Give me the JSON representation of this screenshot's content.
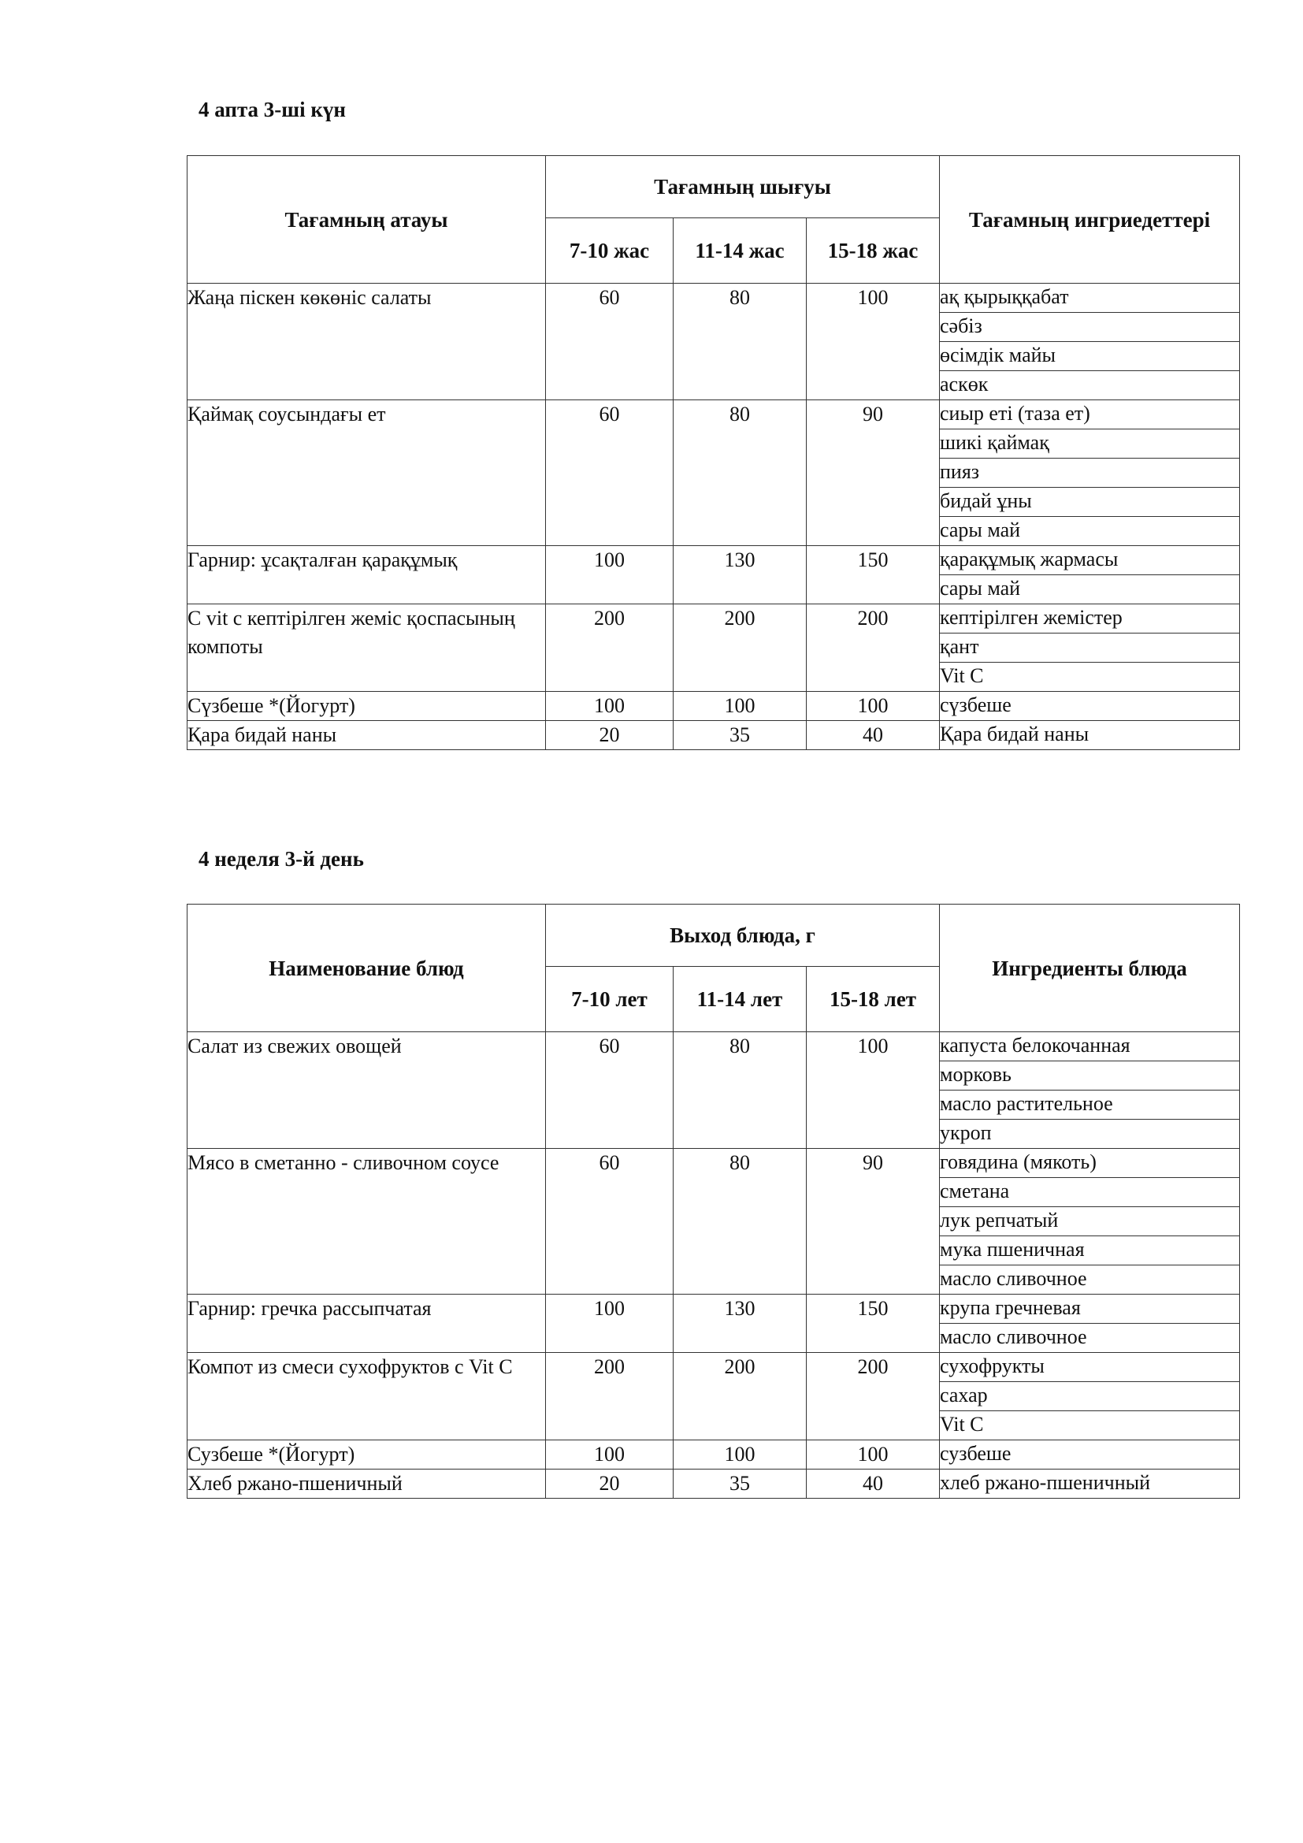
{
  "sections": [
    {
      "title": "4 апта 3-ші күн",
      "headers": {
        "name": "Тағамның атауы",
        "yield": "Тағамның шығуы",
        "ages": [
          "7-10  жас",
          "11-14 жас",
          "15-18 жас"
        ],
        "ingredients": "Тағамның ингриедеттері"
      },
      "rows": [
        {
          "name": "Жаңа піскен көкөніс салаты",
          "values": [
            "60",
            "80",
            "100"
          ],
          "ingredients": [
            "ақ қырыққабат",
            "сәбіз",
            "өсімдік майы",
            "аскөк"
          ]
        },
        {
          "name": "Қаймақ соусындағы ет",
          "values": [
            "60",
            "80",
            "90"
          ],
          "ingredients": [
            "сиыр еті (таза ет)",
            "шикі қаймақ",
            "пияз",
            "бидай ұны",
            "сары май"
          ]
        },
        {
          "name": "Гарнир: ұсақталған қарақұмық",
          "values": [
            "100",
            "130",
            "150"
          ],
          "ingredients": [
            "қарақұмық жармасы",
            "сары май"
          ]
        },
        {
          "name": "С vit с кептірілген жеміс қоспасының компоты",
          "values": [
            "200",
            "200",
            "200"
          ],
          "ingredients": [
            "кептірілген жемістер",
            "қант",
            "Vit C"
          ]
        },
        {
          "name": "Сүзбеше *(Йогурт)",
          "values": [
            "100",
            "100",
            "100"
          ],
          "ingredients": [
            "сүзбеше"
          ]
        },
        {
          "name": "Қара бидай наны",
          "values": [
            "20",
            "35",
            "40"
          ],
          "ingredients": [
            "Қара бидай наны"
          ]
        }
      ]
    },
    {
      "title": "4 неделя 3-й день",
      "headers": {
        "name": "Наименование блюд",
        "yield": "Выход блюда, г",
        "ages": [
          "7-10 лет",
          "11-14 лет",
          "15-18 лет"
        ],
        "ingredients": "Ингредиенты блюда"
      },
      "rows": [
        {
          "name": "Салат из свежих овощей",
          "values": [
            "60",
            "80",
            "100"
          ],
          "ingredients": [
            "капуста белокочанная",
            "морковь",
            "масло растительное",
            "укроп"
          ]
        },
        {
          "name": "Мясо в сметанно - сливочном соусе",
          "values": [
            "60",
            "80",
            "90"
          ],
          "ingredients": [
            "говядина (мякоть)",
            "сметана",
            "лук репчатый",
            "мука пшеничная",
            "масло сливочное"
          ]
        },
        {
          "name": "Гарнир: гречка рассыпчатая",
          "values": [
            "100",
            "130",
            "150"
          ],
          "ingredients": [
            "крупа гречневая",
            "масло сливочное"
          ]
        },
        {
          "name": "Компот из смеси сухофруктов с Vit C",
          "values": [
            "200",
            "200",
            "200"
          ],
          "ingredients": [
            "сухофрукты",
            "сахар",
            "Vit C"
          ]
        },
        {
          "name": "Сузбеше *(Йогурт)",
          "values": [
            "100",
            "100",
            "100"
          ],
          "ingredients": [
            "сузбеше"
          ]
        },
        {
          "name": "Хлеб ржано-пшеничный",
          "values": [
            "20",
            "35",
            "40"
          ],
          "ingredients": [
            "хлеб ржано-пшеничный"
          ]
        }
      ]
    }
  ]
}
